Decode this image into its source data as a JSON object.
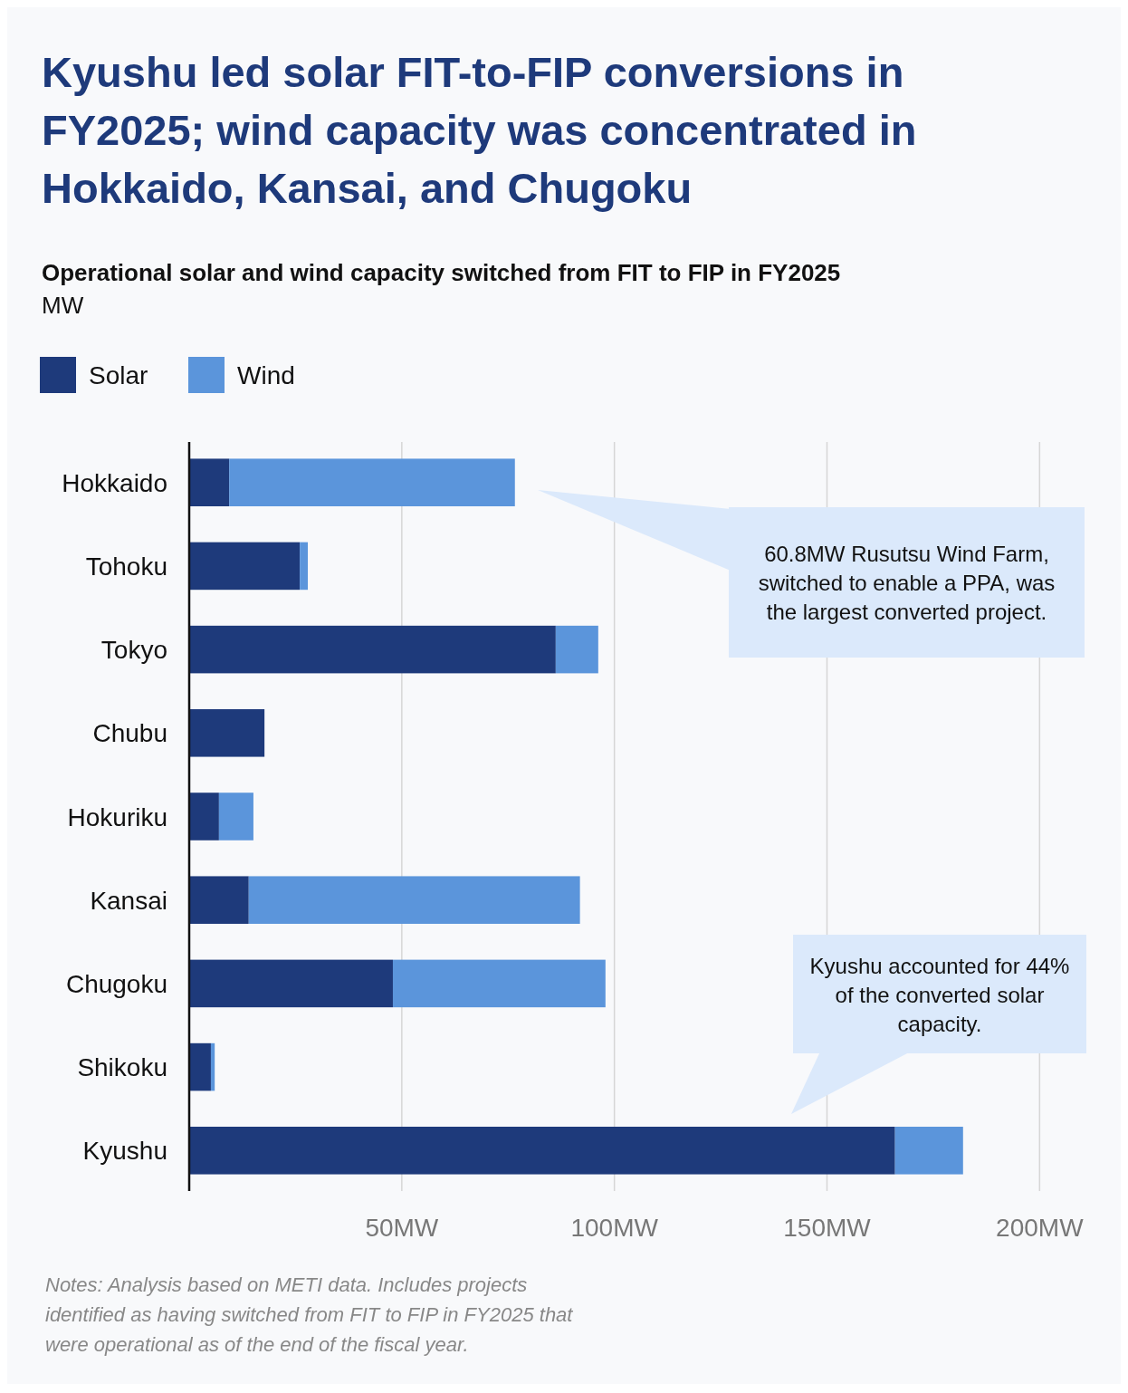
{
  "chart_data": {
    "type": "bar",
    "orientation": "horizontal",
    "stacked": true,
    "title": "Kyushu led solar FIT-to-FIP conversions in FY2025; wind capacity was concentrated in Hokkaido, Kansai, and Chugoku",
    "subtitle": "Operational solar and wind capacity switched from FIT to FIP in FY2025",
    "categories": [
      "Hokkaido",
      "Tohoku",
      "Tokyo",
      "Chubu",
      "Hokuriku",
      "Kansai",
      "Chugoku",
      "Shikoku",
      "Kyushu"
    ],
    "series": [
      {
        "name": "Solar",
        "color": "#1e3a7b",
        "values": [
          9.4,
          26.0,
          86.2,
          17.7,
          7.0,
          14.0,
          47.9,
          5.1,
          166.0
        ]
      },
      {
        "name": "Wind",
        "color": "#5b95db",
        "values": [
          67.2,
          1.9,
          10.0,
          0,
          8.1,
          77.9,
          50.0,
          0.9,
          16.0
        ]
      }
    ],
    "xlim": [
      0,
      211
    ],
    "xticks": [
      {
        "value": 50,
        "label": "50MW"
      },
      {
        "value": 100,
        "label": "100MW"
      },
      {
        "value": 150,
        "label": "150MW"
      },
      {
        "value": 200,
        "label": "200MW"
      }
    ],
    "grid": "x",
    "legend": "top left",
    "annotations": [
      "MW",
      "60.8MW Rusutsu Wind Farm, switched to enable a PPA, was the largest converted project.",
      "Kyushu accounted for 44% of the converted solar capacity.",
      "Notes: Analysis based on METI data. Includes projects identified as having switched from FIT to FIP in FY2025 that were operational as of the end of the fiscal year."
    ]
  }
}
